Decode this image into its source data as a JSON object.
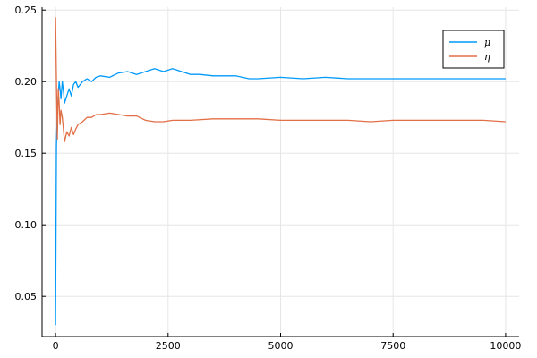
{
  "chart_data": {
    "type": "line",
    "title": "",
    "xlabel": "",
    "ylabel": "",
    "xlim": [
      -300,
      10300
    ],
    "ylim": [
      0.022,
      0.252
    ],
    "xticks": [
      0,
      2500,
      5000,
      7500,
      10000
    ],
    "xtick_labels": [
      "0",
      "2500",
      "5000",
      "7500",
      "10000"
    ],
    "yticks": [
      0.05,
      0.1,
      0.15,
      0.2,
      0.25
    ],
    "ytick_labels": [
      "0.05",
      "0.10",
      "0.15",
      "0.20",
      "0.25"
    ],
    "grid": true,
    "legend_position": "top-right",
    "series": [
      {
        "name": "μ",
        "color": "#009af9",
        "x": [
          0,
          20,
          40,
          60,
          80,
          100,
          120,
          150,
          180,
          200,
          250,
          300,
          350,
          400,
          450,
          500,
          600,
          700,
          800,
          900,
          1000,
          1200,
          1400,
          1600,
          1800,
          2000,
          2200,
          2400,
          2600,
          2800,
          3000,
          3200,
          3500,
          4000,
          4300,
          4500,
          5000,
          5500,
          6000,
          6500,
          7000,
          7500,
          8000,
          8500,
          9000,
          9500,
          10000
        ],
        "y": [
          0.03,
          0.155,
          0.18,
          0.19,
          0.2,
          0.195,
          0.188,
          0.2,
          0.192,
          0.185,
          0.19,
          0.195,
          0.19,
          0.198,
          0.2,
          0.196,
          0.2,
          0.202,
          0.2,
          0.203,
          0.204,
          0.203,
          0.206,
          0.207,
          0.205,
          0.207,
          0.209,
          0.207,
          0.209,
          0.207,
          0.205,
          0.205,
          0.204,
          0.204,
          0.202,
          0.202,
          0.203,
          0.202,
          0.203,
          0.202,
          0.202,
          0.202,
          0.202,
          0.202,
          0.202,
          0.202,
          0.202
        ]
      },
      {
        "name": "η",
        "color": "#e26f46",
        "x": [
          0,
          20,
          40,
          60,
          80,
          100,
          120,
          150,
          180,
          200,
          250,
          300,
          350,
          400,
          450,
          500,
          600,
          700,
          800,
          900,
          1000,
          1200,
          1400,
          1600,
          1800,
          2000,
          2200,
          2400,
          2600,
          2800,
          3000,
          3500,
          4000,
          4500,
          5000,
          5500,
          6000,
          6500,
          7000,
          7500,
          8000,
          8500,
          9000,
          9500,
          10000
        ],
        "y": [
          0.245,
          0.2,
          0.16,
          0.195,
          0.185,
          0.17,
          0.18,
          0.175,
          0.165,
          0.158,
          0.165,
          0.162,
          0.168,
          0.163,
          0.167,
          0.17,
          0.172,
          0.175,
          0.175,
          0.177,
          0.177,
          0.178,
          0.177,
          0.176,
          0.176,
          0.173,
          0.172,
          0.172,
          0.173,
          0.173,
          0.173,
          0.174,
          0.174,
          0.174,
          0.173,
          0.173,
          0.173,
          0.173,
          0.172,
          0.173,
          0.173,
          0.173,
          0.173,
          0.173,
          0.172
        ]
      }
    ]
  }
}
